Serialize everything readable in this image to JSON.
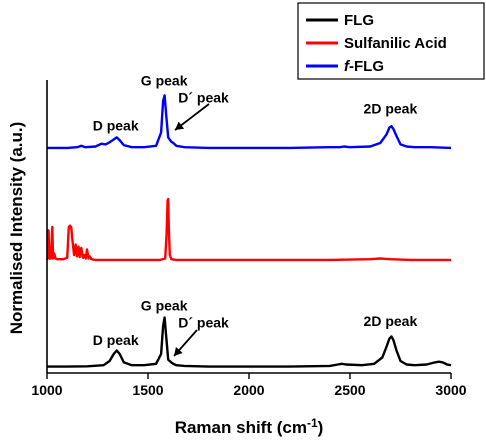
{
  "chart_data": {
    "type": "line",
    "xlabel": "Raman shift (cm",
    "xlabel_sup": "-1",
    "xlabel_close": ")",
    "ylabel": "Normalised Intensity (a.u.)",
    "xlim": [
      1000,
      3000
    ],
    "x_ticks": [
      1000,
      1500,
      2000,
      2500,
      3000
    ],
    "y_ticks_shown": false,
    "grid": false,
    "legend_position": "top-right",
    "series": [
      {
        "name": "FLG",
        "color": "#000000",
        "offset": 0,
        "x": [
          1000,
          1100,
          1200,
          1280,
          1310,
          1330,
          1345,
          1360,
          1380,
          1420,
          1480,
          1540,
          1565,
          1575,
          1582,
          1590,
          1600,
          1615,
          1625,
          1640,
          1680,
          1800,
          2000,
          2200,
          2400,
          2440,
          2460,
          2480,
          2560,
          2620,
          2660,
          2680,
          2695,
          2705,
          2715,
          2730,
          2750,
          2780,
          2820,
          2880,
          2920,
          2940,
          2960,
          2980,
          3000
        ],
        "y": [
          0.02,
          0.02,
          0.025,
          0.04,
          0.1,
          0.2,
          0.25,
          0.2,
          0.08,
          0.04,
          0.04,
          0.06,
          0.2,
          0.6,
          0.72,
          0.45,
          0.12,
          0.08,
          0.06,
          0.04,
          0.03,
          0.02,
          0.02,
          0.02,
          0.03,
          0.05,
          0.06,
          0.05,
          0.04,
          0.06,
          0.15,
          0.3,
          0.42,
          0.45,
          0.4,
          0.25,
          0.1,
          0.05,
          0.04,
          0.05,
          0.08,
          0.09,
          0.08,
          0.05,
          0.04
        ]
      },
      {
        "name": "Sulfanilic Acid",
        "color": "#ff0000",
        "offset": 1,
        "x": [
          1000,
          1004,
          1008,
          1012,
          1020,
          1026,
          1030,
          1036,
          1042,
          1050,
          1080,
          1100,
          1108,
          1114,
          1120,
          1126,
          1134,
          1142,
          1148,
          1156,
          1162,
          1170,
          1178,
          1186,
          1192,
          1198,
          1206,
          1212,
          1220,
          1240,
          1300,
          1400,
          1500,
          1560,
          1585,
          1592,
          1597,
          1600,
          1603,
          1608,
          1616,
          1640,
          1800,
          2000,
          2200,
          2400,
          2600,
          2650,
          2700,
          2800,
          3000
        ],
        "y": [
          0.03,
          0.08,
          0.45,
          0.05,
          0.05,
          0.5,
          0.05,
          0.12,
          0.05,
          0.04,
          0.04,
          0.06,
          0.5,
          0.52,
          0.5,
          0.3,
          0.1,
          0.25,
          0.08,
          0.22,
          0.07,
          0.2,
          0.06,
          0.1,
          0.05,
          0.18,
          0.05,
          0.08,
          0.04,
          0.03,
          0.03,
          0.03,
          0.03,
          0.03,
          0.05,
          0.4,
          0.88,
          0.9,
          0.5,
          0.1,
          0.04,
          0.03,
          0.03,
          0.03,
          0.03,
          0.03,
          0.04,
          0.05,
          0.04,
          0.03,
          0.03
        ]
      },
      {
        "name": "f-FLG",
        "color": "#0000ff",
        "offset": 2,
        "x": [
          1000,
          1100,
          1150,
          1170,
          1190,
          1240,
          1270,
          1290,
          1310,
          1330,
          1345,
          1360,
          1380,
          1420,
          1480,
          1540,
          1565,
          1575,
          1582,
          1590,
          1600,
          1615,
          1625,
          1640,
          1680,
          1800,
          2000,
          2200,
          2400,
          2450,
          2470,
          2500,
          2600,
          2650,
          2680,
          2695,
          2705,
          2715,
          2730,
          2750,
          2780,
          2820,
          2900,
          3000
        ],
        "y": [
          0.03,
          0.03,
          0.04,
          0.06,
          0.04,
          0.05,
          0.09,
          0.08,
          0.11,
          0.15,
          0.18,
          0.14,
          0.07,
          0.04,
          0.04,
          0.06,
          0.25,
          0.7,
          0.78,
          0.5,
          0.18,
          0.12,
          0.1,
          0.06,
          0.04,
          0.03,
          0.03,
          0.03,
          0.04,
          0.04,
          0.05,
          0.04,
          0.05,
          0.1,
          0.22,
          0.32,
          0.34,
          0.3,
          0.2,
          0.08,
          0.05,
          0.04,
          0.04,
          0.03
        ]
      }
    ],
    "annotations": {
      "top": [
        {
          "text": "D peak",
          "x": 1340,
          "y": 2.28
        },
        {
          "text": "G peak",
          "x": 1580,
          "y": 2.92
        },
        {
          "text": "D´ peak",
          "x": 1775,
          "y": 2.68
        },
        {
          "text": "2D peak",
          "x": 2700,
          "y": 2.52
        }
      ],
      "bottom": [
        {
          "text": "D peak",
          "x": 1340,
          "y": 0.33
        },
        {
          "text": "G peak",
          "x": 1580,
          "y": 0.82
        },
        {
          "text": "D´ peak",
          "x": 1775,
          "y": 0.58
        },
        {
          "text": "2D peak",
          "x": 2700,
          "y": 0.6
        }
      ]
    }
  }
}
